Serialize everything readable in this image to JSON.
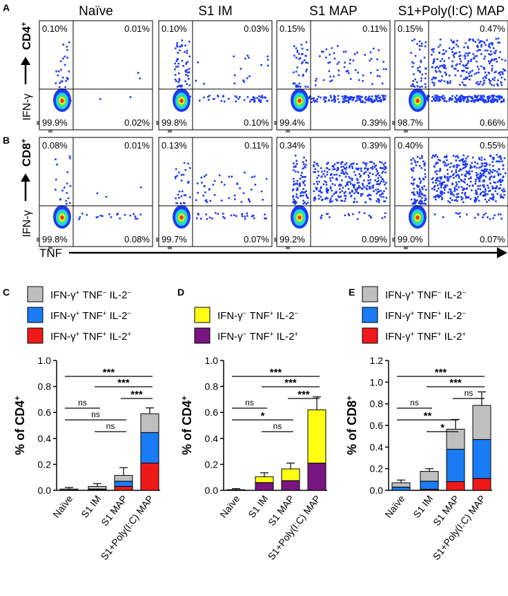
{
  "colors": {
    "dot": "#1f3cf0",
    "gray": "#bfbfbf",
    "blue": "#1a7cf5",
    "red": "#f01919",
    "yellow": "#ffff14",
    "purple": "#7a1480"
  },
  "flow": {
    "panel_letters": [
      "A",
      "B"
    ],
    "columns": [
      "Naïve",
      "S1 IM",
      "S1 MAP",
      "S1+Poly(I:C) MAP"
    ],
    "row_labels": [
      "CD4+",
      "CD8+"
    ],
    "y_axis_label": "IFN-γ",
    "x_axis_label": "TNF",
    "rows": [
      {
        "name": "CD4+",
        "plots": [
          {
            "ul": "0.10%",
            "ur": "0.01%",
            "ll": "99.9%",
            "lr": "0.02%"
          },
          {
            "ul": "0.10%",
            "ur": "0.03%",
            "ll": "99.8%",
            "lr": "0.10%"
          },
          {
            "ul": "0.15%",
            "ur": "0.11%",
            "ll": "99.4%",
            "lr": "0.39%"
          },
          {
            "ul": "0.15%",
            "ur": "0.47%",
            "ll": "98.7%",
            "lr": "0.66%"
          }
        ]
      },
      {
        "name": "CD8+",
        "plots": [
          {
            "ul": "0.08%",
            "ur": "0.01%",
            "ll": "99.8%",
            "lr": "0.08%"
          },
          {
            "ul": "0.13%",
            "ur": "0.11%",
            "ll": "99.7%",
            "lr": "0.07%"
          },
          {
            "ul": "0.34%",
            "ur": "0.39%",
            "ll": "99.2%",
            "lr": "0.09%"
          },
          {
            "ul": "0.40%",
            "ur": "0.55%",
            "ll": "99.0%",
            "lr": "0.07%"
          }
        ]
      }
    ]
  },
  "chart_data": [
    {
      "panel": "C",
      "type": "bar",
      "stacked": true,
      "ylabel": "% of CD4+",
      "ylim": [
        0,
        1.0
      ],
      "yticks": [
        "0.0",
        "0.2",
        "0.4",
        "0.6",
        "0.8",
        "1.0"
      ],
      "categories": [
        "Naïve",
        "S1 IM",
        "S1 MAP",
        "S1+Poly(I:C) MAP"
      ],
      "legend": [
        "IFN-γ+ TNF− IL-2−",
        "IFN-γ+ TNF+ IL-2−",
        "IFN-γ+ TNF+ IL-2+"
      ],
      "series": [
        {
          "name": "IFN-γ+ TNF+ IL-2+",
          "color": "red",
          "values": [
            0.0,
            0.005,
            0.03,
            0.21
          ],
          "errors": [
            0.0,
            0.0,
            0.0,
            0.045
          ]
        },
        {
          "name": "IFN-γ+ TNF+ IL-2−",
          "color": "blue",
          "values": [
            0.003,
            0.005,
            0.04,
            0.235
          ],
          "errors": [
            0.0,
            0.0,
            0.03,
            0.055
          ]
        },
        {
          "name": "IFN-γ+ TNF− IL-2−",
          "color": "gray",
          "values": [
            0.007,
            0.02,
            0.045,
            0.145
          ],
          "errors": [
            0.012,
            0.022,
            0.06,
            0.045
          ]
        }
      ],
      "significance": [
        {
          "from": 0,
          "to": 3,
          "label": "***"
        },
        {
          "from": 1,
          "to": 3,
          "label": "***"
        },
        {
          "from": 2,
          "to": 3,
          "label": "***"
        },
        {
          "from": 0,
          "to": 1,
          "label": "ns"
        },
        {
          "from": 0,
          "to": 2,
          "label": "ns"
        },
        {
          "from": 1,
          "to": 2,
          "label": "ns"
        }
      ]
    },
    {
      "panel": "D",
      "type": "bar",
      "stacked": true,
      "ylabel": "% of CD4+",
      "ylim": [
        0,
        1.0
      ],
      "yticks": [
        "0.0",
        "0.2",
        "0.4",
        "0.6",
        "0.8",
        "1.0"
      ],
      "categories": [
        "Naïve",
        "S1 IM",
        "S1 MAP",
        "S1+Poly(I:C) MAP"
      ],
      "legend": [
        "IFN-γ− TNF+ IL-2−",
        "IFN-γ− TNF+ IL-2+"
      ],
      "series": [
        {
          "name": "IFN-γ− TNF+ IL-2+",
          "color": "purple",
          "values": [
            0.0,
            0.06,
            0.075,
            0.21
          ],
          "errors": [
            0.0,
            0.0,
            0.015,
            0.055
          ]
        },
        {
          "name": "IFN-γ− TNF+ IL-2−",
          "color": "yellow",
          "values": [
            0.005,
            0.045,
            0.09,
            0.41
          ],
          "errors": [
            0.008,
            0.03,
            0.045,
            0.1
          ]
        }
      ],
      "significance": [
        {
          "from": 0,
          "to": 3,
          "label": "***"
        },
        {
          "from": 1,
          "to": 3,
          "label": "***"
        },
        {
          "from": 2,
          "to": 3,
          "label": "***"
        },
        {
          "from": 0,
          "to": 1,
          "label": "ns"
        },
        {
          "from": 0,
          "to": 2,
          "label": "*"
        },
        {
          "from": 1,
          "to": 2,
          "label": "ns"
        }
      ]
    },
    {
      "panel": "E",
      "type": "bar",
      "stacked": true,
      "ylabel": "% of CD8+",
      "ylim": [
        0,
        1.2
      ],
      "yticks": [
        "0.0",
        "0.2",
        "0.4",
        "0.6",
        "0.8",
        "1.0",
        "1.2"
      ],
      "categories": [
        "Naïve",
        "S1 IM",
        "S1 MAP",
        "S1+Poly(I:C) MAP"
      ],
      "legend": [
        "IFN-γ+ TNF− IL-2−",
        "IFN-γ+ TNF+ IL-2−",
        "IFN-γ+ TNF+ IL-2+"
      ],
      "series": [
        {
          "name": "IFN-γ+ TNF+ IL-2+",
          "color": "red",
          "values": [
            0.0,
            0.01,
            0.08,
            0.11
          ],
          "errors": [
            0.0,
            0.0,
            0.045,
            0.06
          ]
        },
        {
          "name": "IFN-γ+ TNF+ IL-2−",
          "color": "blue",
          "values": [
            0.03,
            0.075,
            0.3,
            0.36
          ],
          "errors": [
            0.0,
            0.015,
            0.13,
            0.12
          ]
        },
        {
          "name": "IFN-γ+ TNF− IL-2−",
          "color": "gray",
          "values": [
            0.04,
            0.09,
            0.185,
            0.315
          ],
          "errors": [
            0.025,
            0.025,
            0.09,
            0.125
          ]
        }
      ],
      "significance": [
        {
          "from": 0,
          "to": 3,
          "label": "***"
        },
        {
          "from": 1,
          "to": 3,
          "label": "***"
        },
        {
          "from": 2,
          "to": 3,
          "label": "ns"
        },
        {
          "from": 0,
          "to": 1,
          "label": "ns"
        },
        {
          "from": 0,
          "to": 2,
          "label": "**"
        },
        {
          "from": 1,
          "to": 2,
          "label": "*"
        }
      ]
    }
  ]
}
